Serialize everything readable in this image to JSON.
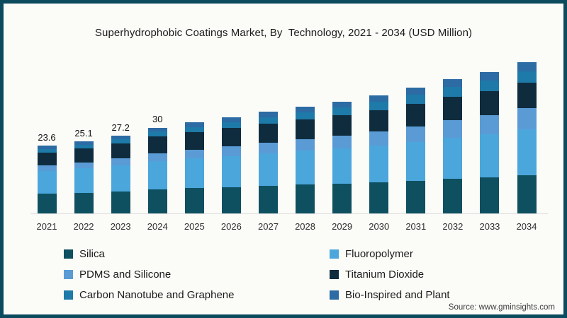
{
  "title": "Superhydrophobic Coatings Market, By  Technology, 2021 - 2034 (USD Million)",
  "source": "Source: www.gminsights.com",
  "frame": {
    "border_color": "#0c4a5e",
    "background_color": "#fbfbf8",
    "axis_line_color": "#dcdfe1"
  },
  "chart_data": {
    "type": "bar",
    "stacked": true,
    "title": "Superhydrophobic Coatings Market, By  Technology, 2021 - 2034 (USD Million)",
    "xlabel": "",
    "ylabel": "USD Million",
    "ylim": [
      0,
      58.5
    ],
    "grid": false,
    "legend_position": "bottom",
    "categories": [
      "2021",
      "2022",
      "2023",
      "2024",
      "2025",
      "2026",
      "2027",
      "2028",
      "2029",
      "2030",
      "2031",
      "2032",
      "2033",
      "2034"
    ],
    "value_labels": [
      "23.6",
      "25.1",
      "27.2",
      "30",
      "",
      "",
      "",
      "",
      "",
      "",
      "",
      "",
      "",
      ""
    ],
    "totals": [
      23.6,
      25.1,
      27.2,
      30,
      31.8,
      33.6,
      35.5,
      37.4,
      39.1,
      41.3,
      43.9,
      47.0,
      49.5,
      52.8
    ],
    "series": [
      {
        "name": "Silica",
        "color": "#0f5060",
        "values": [
          6.8,
          7.2,
          7.7,
          8.4,
          8.8,
          9.2,
          9.6,
          10.0,
          10.4,
          10.9,
          11.4,
          12.1,
          12.7,
          13.4
        ]
      },
      {
        "name": "Fluoropolymer",
        "color": "#4ba6dc",
        "values": [
          8.0,
          8.5,
          9.1,
          9.9,
          10.4,
          10.9,
          11.4,
          11.9,
          12.3,
          12.9,
          13.6,
          14.4,
          15.0,
          16.0
        ]
      },
      {
        "name": "PDMS and Silicone",
        "color": "#5b9bd5",
        "values": [
          1.9,
          2.1,
          2.4,
          2.8,
          3.1,
          3.4,
          3.7,
          4.1,
          4.5,
          4.9,
          5.4,
          6.0,
          6.5,
          7.3
        ]
      },
      {
        "name": "Titanium Dioxide",
        "color": "#0f2c3e",
        "values": [
          4.5,
          4.8,
          5.2,
          5.7,
          6.0,
          6.3,
          6.6,
          6.9,
          7.1,
          7.4,
          7.8,
          8.2,
          8.5,
          8.9
        ]
      },
      {
        "name": "Carbon Nanotube and Graphene",
        "color": "#1e7aa8",
        "values": [
          1.3,
          1.4,
          1.6,
          1.8,
          1.9,
          2.1,
          2.3,
          2.5,
          2.7,
          2.9,
          3.2,
          3.5,
          3.8,
          4.1
        ]
      },
      {
        "name": "Bio-Inspired and Plant",
        "color": "#2c6ba3",
        "values": [
          1.1,
          1.1,
          1.2,
          1.4,
          1.6,
          1.7,
          1.9,
          2.0,
          2.1,
          2.3,
          2.5,
          2.8,
          3.0,
          3.1
        ]
      }
    ]
  }
}
